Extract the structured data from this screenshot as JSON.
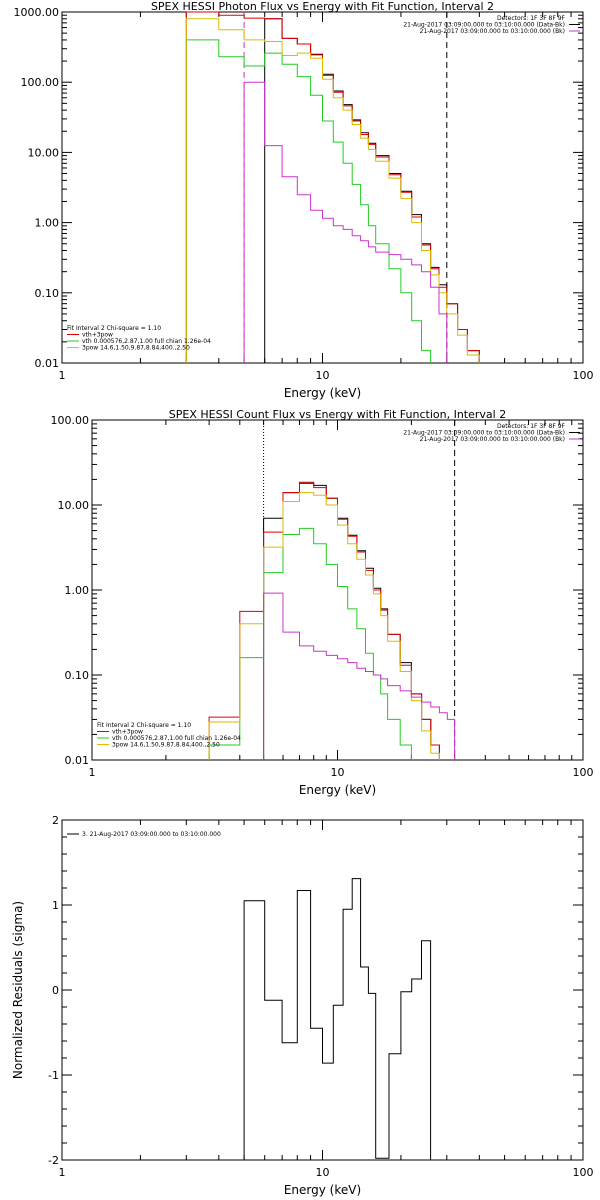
{
  "chart_data": [
    {
      "type": "line",
      "title": "SPEX HESSI Photon Flux vs Energy with Fit Function, Interval 2",
      "xlabel": "Energy (keV)",
      "ylabel": "",
      "x_scale": "log",
      "y_scale": "log",
      "xlim": [
        1,
        100
      ],
      "ylim": [
        0.01,
        1000
      ],
      "x_ticks": [
        {
          "v": 1,
          "l": "1"
        },
        {
          "v": 10,
          "l": "10"
        },
        {
          "v": 100,
          "l": "100"
        }
      ],
      "y_ticks": [
        {
          "v": 0.01,
          "l": "0.01"
        },
        {
          "v": 0.1,
          "l": "0.10"
        },
        {
          "v": 1,
          "l": "1.00"
        },
        {
          "v": 10,
          "l": "10.00"
        },
        {
          "v": 100,
          "l": "100.00"
        },
        {
          "v": 1000,
          "l": "1000.00"
        }
      ],
      "vlines": [
        {
          "x": 5,
          "style": "dashed",
          "color": "#cc33cc"
        },
        {
          "x": 30,
          "style": "dashed",
          "color": "#000000"
        }
      ],
      "legend_right": [
        "Detectors: 1F 3F 8F 9F",
        "21-Aug-2017 03:09:00.000 to 03:10:00.000 (Data-Bk)",
        "21-Aug-2017 03:09:00.000 to 03:10:00.000 (Bk)"
      ],
      "legend_right_colors": [
        "",
        "#000000",
        "#cc33cc"
      ],
      "legend_left": [
        "Fit Interval 2   Chi-square = 1.10",
        "vth+3pow",
        "vth 0.000576,2.87,1.00  full chian 1.26e-04",
        "3pow 14.6,1.50,9.87,8.84,400.,2.50"
      ],
      "legend_left_colors": [
        "",
        "#dd0000",
        "#22cc22",
        "#ddbb00"
      ],
      "edges": [
        3,
        4,
        5,
        6,
        7,
        8,
        9,
        10,
        11,
        12,
        13,
        14,
        15,
        16,
        18,
        20,
        22,
        24,
        26,
        28,
        30,
        33,
        36,
        40
      ],
      "series": [
        {
          "color": "#000000",
          "values": [
            null,
            null,
            null,
            800,
            420,
            350,
            250,
            130,
            75,
            48,
            29,
            19,
            13.5,
            9,
            5,
            2.8,
            1.3,
            0.5,
            0.23,
            0.13,
            0.07,
            0.03,
            0.015
          ]
        },
        {
          "color": "#dd0000",
          "values": [
            1000,
            900,
            820,
            800,
            420,
            350,
            245,
            125,
            72,
            46,
            28,
            18,
            13,
            8.6,
            4.8,
            2.7,
            1.2,
            0.48,
            0.22,
            0.12,
            0.07,
            0.03,
            0.015
          ]
        },
        {
          "color": "#22cc22",
          "values": [
            400,
            230,
            170,
            260,
            180,
            120,
            65,
            28,
            14,
            7,
            3.5,
            1.8,
            0.9,
            0.5,
            0.22,
            0.1,
            0.04,
            0.015,
            null,
            null,
            null,
            null,
            null
          ]
        },
        {
          "color": "#ddbb00",
          "values": [
            800,
            560,
            400,
            380,
            240,
            260,
            220,
            110,
            60,
            40,
            25,
            16,
            11,
            7.5,
            4.3,
            2.2,
            1.0,
            0.4,
            0.18,
            0.1,
            0.05,
            0.025,
            0.013
          ]
        },
        {
          "color": "#cc33cc",
          "values": [
            null,
            null,
            100,
            12.5,
            4.5,
            2.5,
            1.5,
            1.15,
            0.9,
            0.8,
            0.65,
            0.55,
            0.45,
            0.38,
            0.35,
            0.3,
            0.25,
            0.2,
            0.12,
            0.05,
            null,
            null,
            null
          ]
        }
      ]
    },
    {
      "type": "line",
      "title": "SPEX HESSI Count Flux vs Energy with Fit Function, Interval 2",
      "xlabel": "Energy (keV)",
      "ylabel": "",
      "x_scale": "log",
      "y_scale": "log",
      "xlim": [
        1,
        100
      ],
      "ylim": [
        0.01,
        100
      ],
      "x_ticks": [
        {
          "v": 1,
          "l": "1"
        },
        {
          "v": 10,
          "l": "10"
        },
        {
          "v": 100,
          "l": "100"
        }
      ],
      "y_ticks": [
        {
          "v": 0.01,
          "l": "0.01"
        },
        {
          "v": 0.1,
          "l": "0.10"
        },
        {
          "v": 1,
          "l": "1.00"
        },
        {
          "v": 10,
          "l": "10.00"
        },
        {
          "v": 100,
          "l": "100.00"
        }
      ],
      "vlines": [
        {
          "x": 5,
          "style": "dotted",
          "color": "#000000"
        },
        {
          "x": 30,
          "style": "dashed",
          "color": "#000000"
        }
      ],
      "legend_right": [
        "Detectors: 1F 3F 8F 9F",
        "21-Aug-2017 03:09:00.000 to 03:10:00.000 (Data-Bk)",
        "21-Aug-2017 03:09:00.000 to 03:10:00.000 (Bk)"
      ],
      "legend_right_colors": [
        "",
        "#000000",
        "#cc33cc"
      ],
      "legend_left": [
        "Fit Interval 2   Chi-square = 1.10",
        "vth+3pow",
        "vth 0.000576,2.87,1.00  full chian 1.26e-04",
        "3pow 14.6,1.50,9.87,8.84,400.,2.50"
      ],
      "legend_left_colors": [
        "",
        "#dd0000",
        "#22cc22",
        "#ddbb00"
      ],
      "edges": [
        3,
        4,
        5,
        6,
        7,
        8,
        9,
        10,
        11,
        12,
        13,
        14,
        15,
        16,
        18,
        20,
        22,
        24,
        26,
        28,
        30
      ],
      "series": [
        {
          "color": "#000000",
          "values": [
            null,
            null,
            7,
            14,
            18,
            17,
            12,
            7,
            4.4,
            2.9,
            1.8,
            1.05,
            0.6,
            0.3,
            0.14,
            0.06,
            0.03,
            0.015,
            null,
            null
          ]
        },
        {
          "color": "#dd0000",
          "values": [
            0.032,
            0.56,
            4.8,
            14,
            18.5,
            16,
            12,
            6.8,
            4.3,
            2.8,
            1.7,
            1.0,
            0.58,
            0.3,
            0.13,
            0.06,
            0.03,
            0.015,
            null,
            null
          ]
        },
        {
          "color": "#22cc22",
          "values": [
            0.015,
            0.16,
            1.6,
            4.5,
            5.3,
            3.5,
            2.0,
            1.1,
            0.6,
            0.35,
            0.18,
            0.1,
            0.06,
            0.03,
            0.015,
            null,
            null,
            null,
            null,
            null
          ]
        },
        {
          "color": "#ddbb00",
          "values": [
            0.028,
            0.4,
            3.2,
            11,
            14,
            13,
            10,
            5.8,
            3.5,
            2.3,
            1.5,
            0.9,
            0.5,
            0.25,
            0.11,
            0.05,
            0.022,
            0.012,
            null,
            null
          ]
        },
        {
          "color": "#cc33cc",
          "values": [
            null,
            null,
            0.92,
            0.32,
            0.22,
            0.19,
            0.17,
            0.155,
            0.14,
            0.12,
            0.11,
            0.1,
            0.09,
            0.075,
            0.065,
            0.055,
            0.048,
            0.042,
            0.036,
            0.03
          ]
        }
      ]
    },
    {
      "type": "line",
      "title": "",
      "xlabel": "Energy (keV)",
      "ylabel": "Normalized Residuals (sigma)",
      "x_scale": "log",
      "y_scale": "linear",
      "xlim": [
        1,
        100
      ],
      "ylim": [
        -2,
        2
      ],
      "x_ticks": [
        {
          "v": 1,
          "l": "1"
        },
        {
          "v": 10,
          "l": "10"
        },
        {
          "v": 100,
          "l": "100"
        }
      ],
      "y_ticks": [
        {
          "v": -2,
          "l": "-2"
        },
        {
          "v": -1,
          "l": "-1"
        },
        {
          "v": 0,
          "l": "0"
        },
        {
          "v": 1,
          "l": "1"
        },
        {
          "v": 2,
          "l": "2"
        }
      ],
      "vlines": [],
      "legend_right": [],
      "legend_right_colors": [],
      "legend_left": [
        "3. 21-Aug-2017 03:09:00.000 to 03:10:00.000"
      ],
      "legend_left_colors": [
        "#000000"
      ],
      "edges": [
        5,
        6,
        7,
        8,
        9,
        10,
        11,
        12,
        13,
        14,
        15,
        16,
        18,
        20,
        22,
        24,
        26,
        28,
        30
      ],
      "series": [
        {
          "color": "#000000",
          "values": [
            1.05,
            -0.12,
            -0.62,
            1.17,
            -0.45,
            -0.86,
            -0.18,
            0.95,
            1.31,
            0.27,
            -0.04,
            -1.98,
            -0.75,
            -0.02,
            0.13,
            0.58
          ]
        }
      ]
    }
  ]
}
